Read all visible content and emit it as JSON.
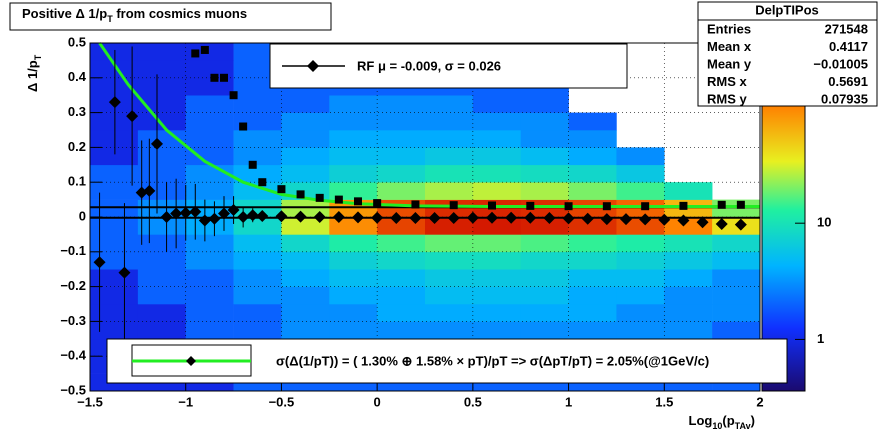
{
  "chart_data": {
    "type": "hist2d",
    "title": {
      "text": "Positive Δ 1/p",
      "sub": "T",
      "tail": " from cosmics muons"
    },
    "y_label": {
      "text": "Δ 1/p",
      "sub": "T"
    },
    "x_label": {
      "text": "Log",
      "sub": "10",
      "mid": "(p",
      "sub2": "TAv",
      "tail": ")"
    },
    "xlim": [
      -1.5,
      2
    ],
    "ylim": [
      -0.5,
      0.5
    ],
    "zlim": [
      0.36,
      355
    ],
    "log_z": true,
    "grid": true,
    "xticks": [
      {
        "value": -1.5,
        "label": "−1.5"
      },
      {
        "value": -1,
        "label": "−1"
      },
      {
        "value": -0.5,
        "label": "−0.5"
      },
      0,
      0.5,
      1,
      1.5,
      2
    ],
    "yticks": [
      {
        "value": -0.5,
        "label": "−0.5"
      },
      {
        "value": -0.4,
        "label": "−0.4"
      },
      {
        "value": -0.3,
        "label": "−0.3"
      },
      {
        "value": -0.2,
        "label": "−0.2"
      },
      {
        "value": -0.1,
        "label": "−0.1"
      },
      0,
      0.1,
      0.2,
      0.3,
      0.4,
      0.5
    ],
    "zticks": [
      1,
      10
    ],
    "xbins": [
      -1.5,
      -1.25,
      -1,
      -0.75,
      -0.5,
      -0.25,
      0,
      0.25,
      0.5,
      0.75,
      1,
      1.25,
      1.5,
      1.75,
      2
    ],
    "ybins": [
      -0.5,
      -0.45,
      -0.4,
      -0.35,
      -0.3,
      -0.25,
      -0.2,
      -0.15,
      -0.1,
      -0.05,
      0,
      0.05,
      0.1,
      0.15,
      0.2,
      0.25,
      0.3,
      0.35,
      0.4,
      0.45,
      0.5
    ],
    "z": [
      [
        1,
        1,
        1,
        2,
        2,
        2,
        2,
        2,
        2,
        2,
        2,
        2,
        2,
        2
      ],
      [
        1,
        1,
        1,
        2,
        2,
        2,
        2,
        2,
        2,
        2,
        2,
        2,
        2,
        2
      ],
      [
        1,
        1,
        2,
        2,
        2,
        3,
        3,
        3,
        3,
        3,
        3,
        3,
        2,
        2
      ],
      [
        1,
        1,
        2,
        2,
        3,
        3,
        3,
        3,
        3,
        3,
        3,
        3,
        3,
        2
      ],
      [
        1,
        1,
        2,
        2,
        3,
        3,
        4,
        4,
        4,
        4,
        4,
        3,
        3,
        3
      ],
      [
        1,
        2,
        2,
        3,
        3,
        4,
        4,
        5,
        5,
        5,
        4,
        4,
        3,
        3
      ],
      [
        1,
        2,
        2,
        3,
        4,
        5,
        5,
        6,
        6,
        6,
        5,
        5,
        4,
        3
      ],
      [
        2,
        2,
        3,
        4,
        5,
        7,
        8,
        9,
        9,
        8,
        8,
        7,
        6,
        5
      ],
      [
        2,
        2,
        3,
        5,
        8,
        12,
        15,
        18,
        18,
        16,
        14,
        12,
        10,
        8
      ],
      [
        2,
        3,
        4,
        8,
        30,
        90,
        200,
        300,
        320,
        300,
        250,
        180,
        100,
        40
      ],
      [
        2,
        3,
        4,
        8,
        25,
        80,
        180,
        260,
        280,
        260,
        200,
        140,
        60,
        20
      ],
      [
        2,
        2,
        3,
        5,
        8,
        14,
        20,
        25,
        28,
        25,
        20,
        15,
        10,
        null
      ],
      [
        2,
        2,
        3,
        4,
        5,
        7,
        8,
        10,
        10,
        9,
        8,
        6,
        null,
        null
      ],
      [
        1,
        2,
        2,
        3,
        4,
        5,
        5,
        6,
        6,
        5,
        4,
        3,
        null,
        null
      ],
      [
        1,
        2,
        2,
        3,
        3,
        4,
        4,
        4,
        4,
        3,
        3,
        null,
        null,
        null
      ],
      [
        1,
        1,
        2,
        2,
        3,
        3,
        3,
        3,
        3,
        3,
        2,
        null,
        null,
        null
      ],
      [
        1,
        1,
        2,
        2,
        2,
        3,
        3,
        3,
        2,
        2,
        null,
        null,
        null,
        null
      ],
      [
        1,
        1,
        1,
        2,
        2,
        2,
        2,
        2,
        2,
        2,
        null,
        null,
        null,
        null
      ],
      [
        1,
        1,
        1,
        2,
        2,
        2,
        2,
        2,
        2,
        null,
        null,
        null,
        null,
        null
      ],
      [
        1,
        1,
        1,
        2,
        2,
        2,
        2,
        2,
        null,
        null,
        null,
        null,
        null,
        null
      ]
    ],
    "mean_points": {
      "x": [
        -1.45,
        -1.37,
        -1.32,
        -1.28,
        -1.23,
        -1.19,
        -1.15,
        -1.1,
        -1.05,
        -1,
        -0.95,
        -0.9,
        -0.85,
        -0.8,
        -0.75,
        -0.7,
        -0.65,
        -0.6,
        -0.5,
        -0.4,
        -0.3,
        -0.2,
        -0.1,
        0,
        0.1,
        0.2,
        0.3,
        0.4,
        0.5,
        0.6,
        0.7,
        0.8,
        0.9,
        1,
        1.1,
        1.2,
        1.3,
        1.4,
        1.5,
        1.6,
        1.7,
        1.8,
        1.9
      ],
      "values": [
        -0.13,
        0.33,
        -0.16,
        0.29,
        0.07,
        0.075,
        0.21,
        0,
        0.01,
        0.012,
        0.015,
        -0.01,
        -0.005,
        0.01,
        0.02,
        0,
        0.005,
        0.003,
        0.002,
        0.001,
        0,
        0,
        -0.001,
        -0.002,
        -0.003,
        -0.003,
        -0.003,
        -0.003,
        -0.002,
        -0.002,
        -0.002,
        -0.002,
        -0.003,
        -0.004,
        -0.005,
        -0.006,
        -0.006,
        -0.007,
        -0.008,
        -0.01,
        -0.015,
        -0.02,
        -0.022
      ],
      "errors": [
        0.2,
        0.15,
        0.2,
        0.2,
        0.15,
        0.15,
        0.2,
        0.1,
        0.1,
        0.08,
        0.08,
        0.06,
        0.05,
        0.05,
        0.04,
        0.03,
        0.02,
        0.005,
        0.005,
        0.005,
        0.005,
        0.005,
        0.005,
        0.005,
        0.005,
        0.005,
        0.005,
        0.005,
        0.005,
        0.005,
        0.005,
        0.005,
        0.005,
        0.005,
        0.005,
        0.005,
        0.005,
        0.005,
        0.005,
        0.005,
        0.005,
        0.005,
        0.005
      ],
      "color": "#000000"
    },
    "sigma_points": {
      "x": [
        -0.95,
        -0.9,
        -0.85,
        -0.8,
        -0.75,
        -0.7,
        -0.65,
        -0.6,
        -0.5,
        -0.4,
        -0.3,
        -0.2,
        -0.1,
        0,
        0.2,
        0.4,
        0.6,
        0.8,
        1,
        1.2,
        1.4,
        1.6,
        1.8,
        1.9
      ],
      "values": [
        0.47,
        0.48,
        0.4,
        0.4,
        0.35,
        0.26,
        0.15,
        0.1,
        0.08,
        0.065,
        0.055,
        0.05,
        0.045,
        0.04,
        0.036,
        0.034,
        0.033,
        0.032,
        0.031,
        0.031,
        0.031,
        0.032,
        0.035,
        0.035
      ],
      "color": "#000000"
    },
    "fit_curve": {
      "x": [
        -1.45,
        -1.3,
        -1.1,
        -0.9,
        -0.7,
        -0.5,
        -0.3,
        -0.1,
        0.2,
        0.6,
        1,
        1.5,
        2
      ],
      "values": [
        0.5,
        0.38,
        0.25,
        0.16,
        0.1,
        0.065,
        0.048,
        0.038,
        0.032,
        0.03,
        0.03,
        0.03,
        0.03
      ],
      "color": "#22ee22"
    },
    "hlines": [
      0.028,
      -0.002
    ],
    "legend_rf": "RF μ = -0.009, σ =   0.026",
    "legend_fit": "σ(Δ(1/pT)) = ( 1.30% ⊕  1.58% × pT)/pT => σ(ΔpT/pT) =  2.05%(@1GeV/c)",
    "stats": {
      "title": "DelpTIPos",
      "rows": [
        [
          "Entries",
          "271548"
        ],
        [
          "Mean x",
          "0.4117"
        ],
        [
          "Mean y",
          "−0.01005"
        ],
        [
          "RMS x",
          "0.5691"
        ],
        [
          "RMS y",
          "0.07935"
        ]
      ]
    }
  }
}
